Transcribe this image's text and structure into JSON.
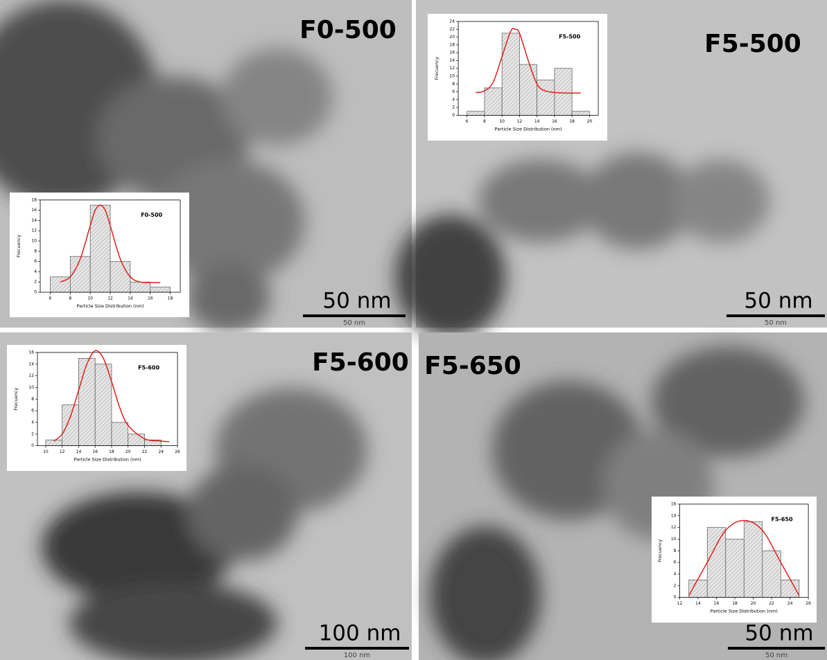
{
  "panels": [
    {
      "label": "F0-500",
      "scale_bar": "50 nm",
      "scale_bar_small": "50 nm"
    },
    {
      "label": "F5-500",
      "scale_bar": "50 nm",
      "scale_bar_small": "50 nm"
    },
    {
      "label": "F5-600",
      "scale_bar": "100 nm",
      "scale_bar_small": "100 nm"
    },
    {
      "label": "F5-650",
      "scale_bar": "50 nm",
      "scale_bar_small": "50 nm"
    }
  ],
  "chart_data": [
    {
      "type": "histogram",
      "title": "F0-500",
      "x_label": "Particle Size Distribution (nm)",
      "y_label": "Frecuency",
      "bins": [
        6,
        8,
        10,
        12,
        14,
        16,
        18
      ],
      "values": [
        3,
        7,
        17,
        6,
        2,
        1
      ],
      "color": "#d9d9d9",
      "xlim": [
        5,
        19
      ],
      "xticks": [
        6,
        8,
        10,
        12,
        14,
        16,
        18
      ],
      "ylim": [
        0,
        18
      ],
      "yticks": [
        0,
        2,
        4,
        6,
        8,
        10,
        12,
        14,
        16,
        18
      ],
      "fit": {
        "color": "#e0201b",
        "x": [
          7,
          8,
          9,
          10,
          10.5,
          11,
          11.5,
          12,
          13,
          14,
          15,
          16,
          17
        ],
        "y": [
          2,
          3,
          6.5,
          13,
          16,
          17,
          16,
          13,
          6.5,
          3,
          2,
          1.9,
          1.9
        ]
      }
    },
    {
      "type": "histogram",
      "title": "F5-500",
      "x_label": "Particle Size Distribution (nm)",
      "y_label": "Frecuency",
      "bins": [
        6,
        8,
        10,
        12,
        14,
        16,
        18,
        20
      ],
      "values": [
        1,
        7,
        21,
        13,
        9,
        12,
        1
      ],
      "color": "#d9d9d9",
      "xlim": [
        5,
        21
      ],
      "xticks": [
        6,
        8,
        10,
        12,
        14,
        16,
        18,
        20
      ],
      "ylim": [
        0,
        24
      ],
      "yticks": [
        0,
        2,
        4,
        6,
        8,
        10,
        12,
        14,
        16,
        18,
        20,
        22,
        24
      ],
      "fit": {
        "color": "#e0201b",
        "x": [
          7,
          8,
          9,
          10,
          11,
          11.5,
          12,
          13,
          14,
          15,
          17,
          19
        ],
        "y": [
          5.8,
          6.2,
          8.5,
          15,
          21.5,
          22,
          21,
          14,
          8,
          6.2,
          5.7,
          5.7
        ]
      }
    },
    {
      "type": "histogram",
      "title": "F5-600",
      "x_label": "Particle Size Distribution (nm)",
      "y_label": "Frecuency",
      "bins": [
        10,
        12,
        14,
        16,
        18,
        20,
        22,
        24
      ],
      "values": [
        1,
        7,
        15,
        14,
        4,
        2,
        1
      ],
      "color": "#d9d9d9",
      "xlim": [
        9,
        26
      ],
      "xticks": [
        10,
        12,
        14,
        16,
        18,
        20,
        22,
        24,
        26
      ],
      "ylim": [
        0,
        16
      ],
      "yticks": [
        0,
        2,
        4,
        6,
        8,
        10,
        12,
        14,
        16
      ],
      "fit": {
        "color": "#e0201b",
        "x": [
          11,
          12,
          13,
          14,
          15,
          16,
          17,
          18,
          19,
          20,
          22,
          24,
          25
        ],
        "y": [
          0.8,
          2,
          5,
          9.5,
          14,
          16.3,
          15,
          11,
          6.5,
          3.5,
          1.2,
          0.8,
          0.7
        ]
      }
    },
    {
      "type": "histogram",
      "title": "F5-650",
      "x_label": "Particle Size Distribution (nm)",
      "y_label": "Frecuency",
      "bins": [
        13,
        15,
        17,
        19,
        21,
        23,
        25
      ],
      "values": [
        3,
        12,
        10,
        13,
        8,
        3
      ],
      "color": "#d9d9d9",
      "xlim": [
        12,
        26
      ],
      "xticks": [
        12,
        14,
        16,
        18,
        20,
        22,
        24,
        26
      ],
      "ylim": [
        0,
        16
      ],
      "yticks": [
        0,
        2,
        4,
        6,
        8,
        10,
        12,
        14,
        16
      ],
      "fit": {
        "color": "#e0201b",
        "x": [
          13,
          15,
          17,
          19,
          21,
          23,
          25
        ],
        "y": [
          0.3,
          6,
          11.5,
          13.2,
          11.5,
          6,
          0.3
        ]
      }
    }
  ]
}
